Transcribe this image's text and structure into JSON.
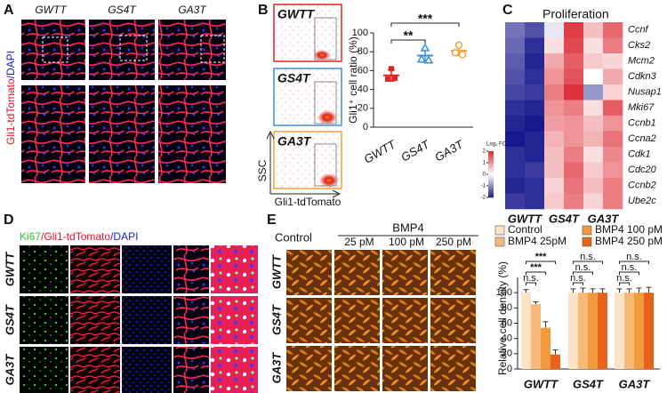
{
  "panels": {
    "A": {
      "label": "A",
      "columns": [
        "GWTT",
        "GS4T",
        "GA3T"
      ],
      "stain": [
        "Gli1-tdTomato",
        "/DAPI"
      ]
    },
    "B": {
      "label": "B",
      "flow_labels": [
        "GWTT",
        "GS4T",
        "GA3T"
      ],
      "x_axis": "Gli1-tdTomato",
      "y_axis": "SSC"
    },
    "C": {
      "label": "C"
    },
    "D": {
      "label": "D",
      "stain": [
        "Ki67",
        "/Gli1-tdTomato",
        "/DAPI"
      ],
      "rows": [
        "GWTT",
        "GS4T",
        "GA3T"
      ]
    },
    "E": {
      "label": "E",
      "treatment": "BMP4",
      "columns": [
        "Control",
        "25 pM",
        "100 pM",
        "250 pM"
      ],
      "rows": [
        "GWTT",
        "GS4T",
        "GA3T"
      ]
    }
  },
  "chart_data": [
    {
      "type": "dot",
      "y_label": "Gli1⁺ cell ratio (%)",
      "categories": [
        "GWTT",
        "GS4T",
        "GA3T"
      ],
      "points": [
        [
          62,
          51,
          52
        ],
        [
          84,
          72,
          71
        ],
        [
          87,
          79,
          77
        ]
      ],
      "means": [
        55,
        76,
        81
      ],
      "errors": [
        6,
        7,
        5
      ],
      "colors": [
        "#e02424",
        "#3b8fd9",
        "#f0a23a"
      ],
      "ylim": [
        0,
        100
      ],
      "yticks": [
        0,
        20,
        40,
        60,
        80,
        100
      ],
      "significance": [
        "**",
        "***"
      ]
    },
    {
      "type": "heatmap",
      "title": "Proliferation",
      "legend_title": "Log₂ FC",
      "rows": [
        "Ccnf",
        "Cks2",
        "Mcm2",
        "Cdkn3",
        "Nusap1",
        "Mki67",
        "Ccnb1",
        "Ccna2",
        "Cdk1",
        "Cdc20",
        "Ccnb2",
        "Ube2c"
      ],
      "groups": [
        "GWTT",
        "GS4T",
        "GA3T"
      ],
      "values": [
        [
          -1.2,
          -1.5,
          -0.2,
          1.8,
          0.6,
          1.4
        ],
        [
          -1.3,
          -1.8,
          0.3,
          1.7,
          0.3,
          1.2
        ],
        [
          -1.4,
          -1.9,
          0.8,
          1.5,
          0.5,
          0.4
        ],
        [
          -1.5,
          -1.8,
          1.0,
          1.6,
          0.0,
          0.8
        ],
        [
          -1.6,
          -1.7,
          1.2,
          1.9,
          -0.9,
          0.4
        ],
        [
          -1.8,
          -1.9,
          1.0,
          1.2,
          0.3,
          1.5
        ],
        [
          -1.9,
          -2.0,
          0.9,
          1.0,
          0.6,
          1.0
        ],
        [
          -2.0,
          -1.9,
          0.7,
          1.0,
          0.7,
          1.3
        ],
        [
          -1.8,
          -1.9,
          0.6,
          1.2,
          0.3,
          1.1
        ],
        [
          -1.8,
          -1.7,
          0.6,
          1.4,
          0.5,
          1.0
        ],
        [
          -1.9,
          -1.8,
          0.4,
          1.3,
          0.6,
          1.2
        ],
        [
          -1.7,
          -1.8,
          0.5,
          1.2,
          0.4,
          1.2
        ]
      ],
      "clim": [
        -2,
        2
      ],
      "cticks": [
        2,
        1,
        0,
        -1,
        -2
      ]
    },
    {
      "type": "bar",
      "y_label": "Relative cell density (%)",
      "categories": [
        "GWTT",
        "GS4T",
        "GA3T"
      ],
      "series": [
        {
          "name": "Control",
          "color": "#fde2c6",
          "values": [
            100,
            100,
            100
          ],
          "errors": [
            4,
            5,
            5
          ]
        },
        {
          "name": "BMP4 25pM",
          "color": "#f7b978",
          "values": [
            85,
            100,
            100
          ],
          "errors": [
            3,
            6,
            5
          ]
        },
        {
          "name": "BMP4 100 pM",
          "color": "#f39a3c",
          "values": [
            54,
            100,
            100
          ],
          "errors": [
            8,
            5,
            6
          ]
        },
        {
          "name": "BMP4 250 pM",
          "color": "#e8621a",
          "values": [
            19,
            100,
            100
          ],
          "errors": [
            6,
            5,
            7
          ]
        }
      ],
      "ylim": [
        0,
        120
      ],
      "yticks": [
        0,
        20,
        40,
        60,
        80,
        100
      ],
      "significance": [
        [
          "***",
          "***",
          "n.s."
        ],
        [
          "n.s.",
          "n.s.",
          "n.s."
        ],
        [
          "n.s.",
          "n.s.",
          "n.s."
        ]
      ]
    }
  ]
}
